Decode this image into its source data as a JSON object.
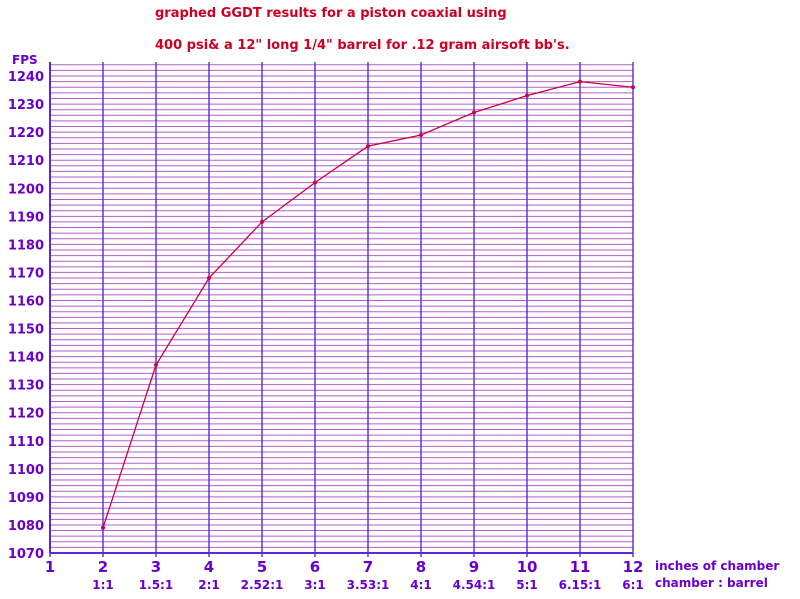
{
  "chart_data": {
    "type": "line",
    "title_line1": "graphed GGDT results for a piston coaxial using",
    "title_line2": "400 psi& a 12\" long 1/4\" barrel for .12 gram airsoft bb's.",
    "ylabel": "FPS",
    "xlabel_line1": "inches of chamber",
    "xlabel_line2": "chamber : barrel",
    "x_ticks": [
      1,
      2,
      3,
      4,
      5,
      6,
      7,
      8,
      9,
      10,
      11,
      12
    ],
    "x_ratio_labels": [
      "",
      "1:1",
      "1.5:1",
      "2:1",
      "2.52:1",
      "3:1",
      "3.53:1",
      "4:1",
      "4.54:1",
      "5:1",
      "6.15:1",
      "6:1"
    ],
    "y_ticks": [
      1070,
      1080,
      1090,
      1100,
      1110,
      1120,
      1130,
      1140,
      1150,
      1160,
      1170,
      1180,
      1190,
      1200,
      1210,
      1220,
      1230,
      1240
    ],
    "xlim": [
      1,
      12
    ],
    "ylim": [
      1070,
      1245
    ],
    "minor_y_step": 2,
    "grid": true,
    "series": [
      {
        "x": [
          2,
          3,
          4,
          5,
          6,
          7,
          8,
          9,
          10,
          11,
          12
        ],
        "y": [
          1079,
          1137,
          1168,
          1188,
          1202,
          1215,
          1219,
          1227,
          1233,
          1238,
          1236
        ]
      }
    ],
    "colors": {
      "title": "#cc0022",
      "text": "#6a00cc",
      "vgrid": "#5a2ad8",
      "hgrid": "#b060c8",
      "line": "#cc0044"
    }
  }
}
